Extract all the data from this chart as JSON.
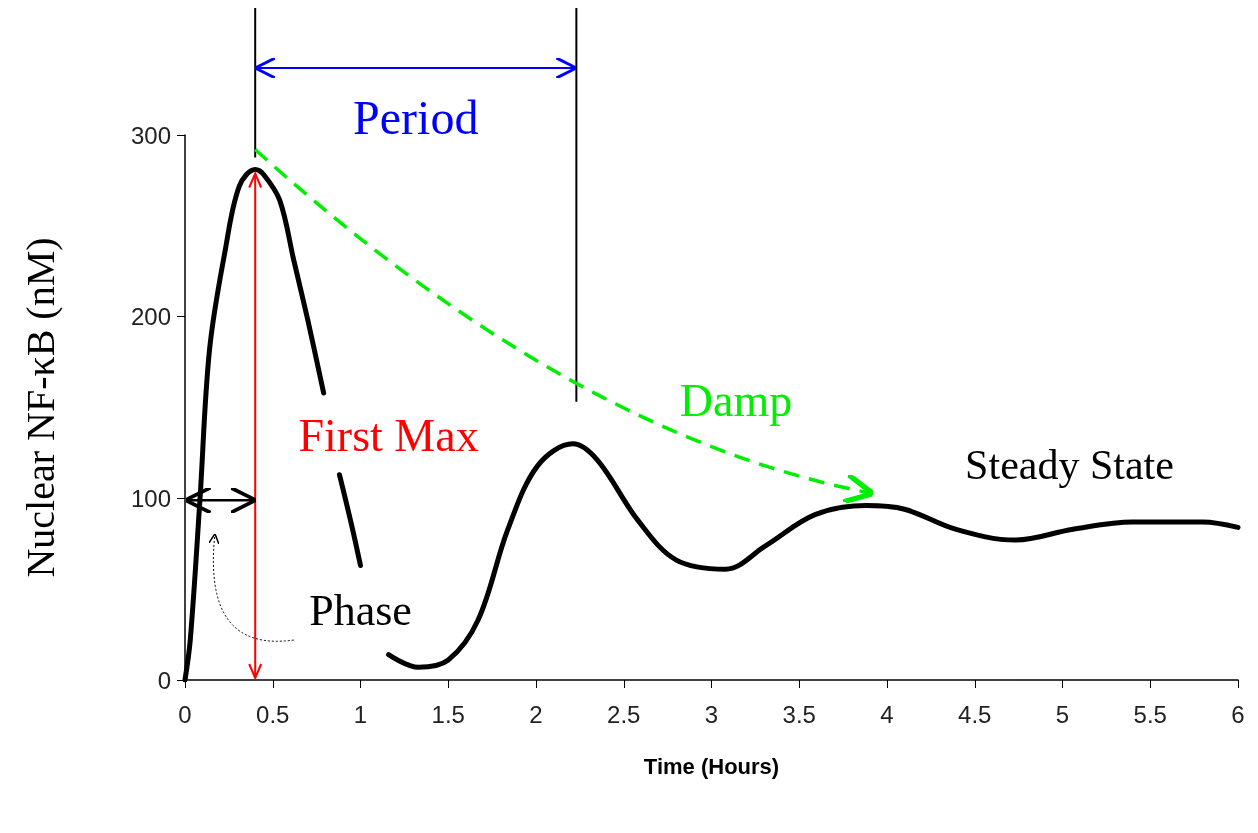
{
  "chart_data": {
    "type": "line",
    "xlabel": "Time (Hours)",
    "ylabel": "Nuclear NF-κB (nM)",
    "x": [
      0,
      0.03,
      0.085,
      0.14,
      0.23,
      0.31,
      0.4,
      0.45,
      0.54,
      0.62,
      0.7,
      0.79,
      0.83,
      0.88,
      0.95,
      1.0,
      1.08,
      1.16,
      1.33,
      1.5,
      1.67,
      1.84,
      2.01,
      2.21,
      2.35,
      2.58,
      2.8,
      3.08,
      3.31,
      3.59,
      3.88,
      4.1,
      4.39,
      4.73,
      5.06,
      5.4,
      5.8,
      6
    ],
    "series": [
      {
        "color": "#000000",
        "values": [
          0,
          22,
          99,
          182,
          237,
          272,
          281,
          278,
          264,
          231,
          198,
          158,
          null,
          113,
          85,
          63,
          null,
          14,
          7,
          11,
          33,
          83,
          118,
          130,
          121,
          88,
          66,
          61,
          74,
          91,
          96,
          94,
          83,
          77,
          83,
          87,
          87,
          84
        ]
      }
    ],
    "xlim": [
      0,
      6
    ],
    "xticks": [
      0,
      0.5,
      1,
      1.5,
      2,
      2.5,
      3,
      3.5,
      4,
      4.5,
      5,
      5.5,
      6
    ],
    "ylim": [
      0,
      300
    ],
    "yticks": [
      0,
      100,
      200,
      300
    ],
    "grid": false,
    "marker": "none",
    "line_style": "solid",
    "ref_lines": [
      {
        "axis": "x",
        "value": 0.4,
        "color": "#ff0000"
      },
      {
        "axis": "x",
        "value": 2.23,
        "color": "#000000"
      }
    ],
    "annotations": [
      "Period",
      "First Max",
      "Damp",
      "Steady State",
      "Phase"
    ]
  }
}
